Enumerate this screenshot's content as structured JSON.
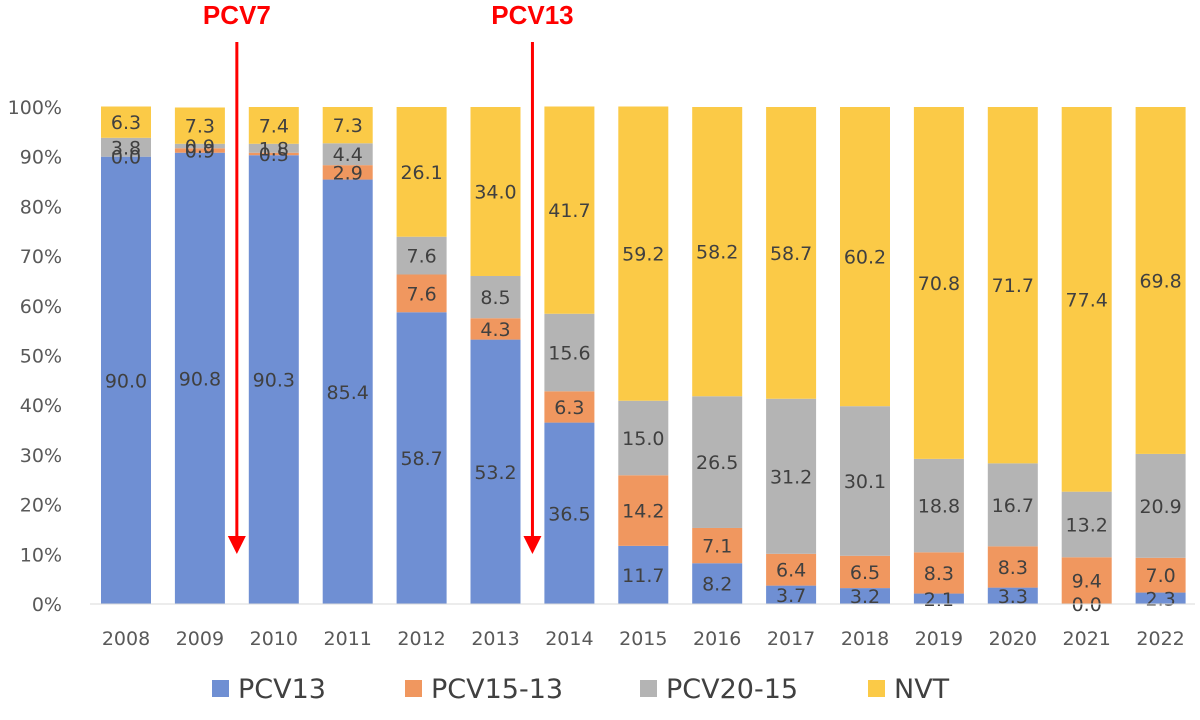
{
  "chart_data": {
    "type": "bar",
    "stacked": true,
    "percent_stacked": true,
    "categories": [
      "2008",
      "2009",
      "2010",
      "2011",
      "2012",
      "2013",
      "2014",
      "2015",
      "2016",
      "2017",
      "2018",
      "2019",
      "2020",
      "2021",
      "2022"
    ],
    "series": [
      {
        "name": "PCV13",
        "color": "#6f8fd3",
        "values": [
          90.0,
          90.8,
          90.3,
          85.4,
          58.7,
          53.2,
          36.5,
          11.7,
          8.2,
          3.7,
          3.2,
          2.1,
          3.3,
          0.0,
          2.3
        ]
      },
      {
        "name": "PCV15-13",
        "color": "#f0975f",
        "values": [
          0.0,
          0.9,
          0.5,
          2.9,
          7.6,
          4.3,
          6.3,
          14.2,
          7.1,
          6.4,
          6.5,
          8.3,
          8.3,
          9.4,
          7.0
        ]
      },
      {
        "name": "PCV20-15",
        "color": "#b4b4b4",
        "values": [
          3.8,
          0.9,
          1.8,
          4.4,
          7.6,
          8.5,
          15.6,
          15.0,
          26.5,
          31.2,
          30.1,
          18.8,
          16.7,
          13.2,
          20.9
        ]
      },
      {
        "name": "NVT",
        "color": "#fbca47",
        "values": [
          6.3,
          7.3,
          7.4,
          7.3,
          26.1,
          34.0,
          41.7,
          59.2,
          58.2,
          58.7,
          60.2,
          70.8,
          71.7,
          77.4,
          69.8
        ]
      }
    ],
    "y_ticks": [
      "0%",
      "10%",
      "20%",
      "30%",
      "40%",
      "50%",
      "60%",
      "70%",
      "80%",
      "90%",
      "100%"
    ],
    "ylim": [
      0,
      100
    ],
    "grid": false,
    "legend_position": "bottom",
    "annotations": [
      {
        "label": "PCV7",
        "between": [
          "2009",
          "2010"
        ],
        "color": "#ff0000"
      },
      {
        "label": "PCV13",
        "between": [
          "2013",
          "2014"
        ],
        "color": "#ff0000"
      }
    ]
  }
}
